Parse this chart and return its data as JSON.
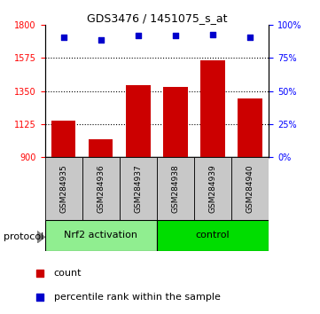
{
  "title": "GDS3476 / 1451075_s_at",
  "samples": [
    "GSM284935",
    "GSM284936",
    "GSM284937",
    "GSM284938",
    "GSM284939",
    "GSM284940"
  ],
  "counts": [
    1150,
    1020,
    1390,
    1380,
    1560,
    1300
  ],
  "percentile_ranks": [
    91,
    89,
    92,
    92,
    93,
    91
  ],
  "ylim_left": [
    900,
    1800
  ],
  "ylim_right": [
    0,
    100
  ],
  "yticks_left": [
    900,
    1125,
    1350,
    1575,
    1800
  ],
  "yticks_right": [
    0,
    25,
    50,
    75,
    100
  ],
  "bar_color": "#cc0000",
  "scatter_color": "#0000cc",
  "grid_color": "#000000",
  "label_area_color": "#c8c8c8",
  "group1_label": "Nrf2 activation",
  "group2_label": "control",
  "group1_color": "#90ee90",
  "group2_color": "#00dd00",
  "group1_indices": [
    0,
    1,
    2
  ],
  "group2_indices": [
    3,
    4,
    5
  ],
  "protocol_label": "protocol",
  "legend_count_label": "count",
  "legend_pct_label": "percentile rank within the sample"
}
